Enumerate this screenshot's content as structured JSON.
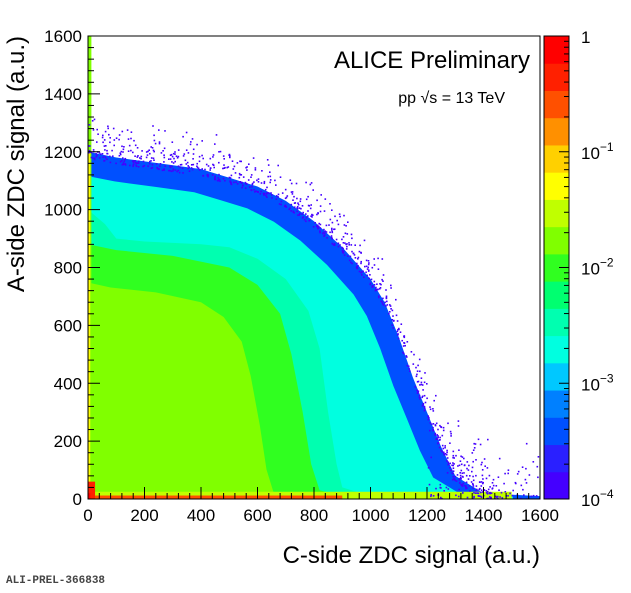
{
  "chart_data": {
    "type": "heatmap",
    "title": "ALICE Preliminary",
    "subtitle": "pp √s = 13 TeV",
    "xlabel": "C-side ZDC signal (a.u.)",
    "ylabel": "A-side ZDC signal (a.u.)",
    "xlim": [
      0,
      1600
    ],
    "ylim": [
      0,
      1600
    ],
    "x_ticks": [
      0,
      200,
      400,
      600,
      800,
      1000,
      1200,
      1400,
      1600
    ],
    "y_ticks": [
      0,
      200,
      400,
      600,
      800,
      1000,
      1200,
      1400,
      1600
    ],
    "z_scale": "log",
    "zlim": [
      0.0001,
      1
    ],
    "z_ticks": [
      {
        "value": 1,
        "label": "1"
      },
      {
        "value": 0.1,
        "label": "10",
        "exponent": "−1"
      },
      {
        "value": 0.01,
        "label": "10",
        "exponent": "−2"
      },
      {
        "value": 0.001,
        "label": "10",
        "exponent": "−3"
      },
      {
        "value": 0.0001,
        "label": "10",
        "exponent": "−4"
      }
    ],
    "density_regions": {
      "outer_boundary": [
        [
          0,
          1200
        ],
        [
          100,
          1180
        ],
        [
          250,
          1160
        ],
        [
          400,
          1140
        ],
        [
          500,
          1110
        ],
        [
          600,
          1080
        ],
        [
          700,
          1030
        ],
        [
          800,
          960
        ],
        [
          900,
          870
        ],
        [
          1000,
          760
        ],
        [
          1050,
          680
        ],
        [
          1100,
          560
        ],
        [
          1150,
          420
        ],
        [
          1200,
          300
        ],
        [
          1250,
          180
        ],
        [
          1300,
          80
        ],
        [
          1400,
          20
        ],
        [
          1600,
          10
        ]
      ],
      "cyan_boundary": [
        [
          0,
          1000
        ],
        [
          60,
          950
        ],
        [
          100,
          900
        ],
        [
          200,
          890
        ],
        [
          400,
          880
        ],
        [
          500,
          870
        ],
        [
          600,
          830
        ],
        [
          700,
          760
        ],
        [
          780,
          650
        ],
        [
          820,
          520
        ],
        [
          850,
          300
        ],
        [
          880,
          120
        ],
        [
          900,
          40
        ],
        [
          1000,
          10
        ]
      ],
      "green_boundary": [
        [
          0,
          880
        ],
        [
          100,
          860
        ],
        [
          300,
          840
        ],
        [
          500,
          800
        ],
        [
          600,
          740
        ],
        [
          680,
          640
        ],
        [
          720,
          500
        ],
        [
          760,
          300
        ],
        [
          790,
          120
        ],
        [
          820,
          30
        ],
        [
          900,
          10
        ]
      ],
      "outer_density": 0.0003,
      "mid_density": 0.002,
      "inner_density": 0.008,
      "core_density": 0.015,
      "edge_density": 0.5
    },
    "colors": {
      "palette": [
        "#4400ff",
        "#2a20ff",
        "#0050ff",
        "#0080ff",
        "#00c8ff",
        "#00ffe0",
        "#00ffb0",
        "#00ff70",
        "#30ff20",
        "#80ff00",
        "#c0ff00",
        "#ffff00",
        "#ffd000",
        "#ff9000",
        "#ff5000",
        "#ff2000",
        "#ff0000"
      ]
    }
  },
  "footer": {
    "plot_id": "ALI-PREL-366838"
  }
}
